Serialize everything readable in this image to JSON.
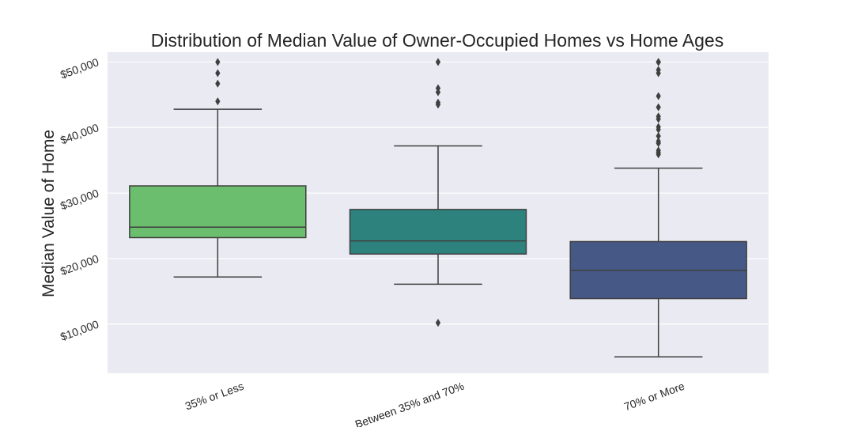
{
  "chart_data": {
    "type": "box",
    "title": "Distribution of Median Value of Owner-Occupied Homes vs Home Ages",
    "xlabel": "",
    "ylabel": "Median Value of Home",
    "ylim": [
      2500,
      51500
    ],
    "y_ticks": [
      10000,
      20000,
      30000,
      40000,
      50000
    ],
    "y_tick_labels": [
      "$10,000",
      "$20,000",
      "$30,000",
      "$40,000",
      "$50,000"
    ],
    "grid": true,
    "categories": [
      "35% or Less",
      "Between 35% and 70%",
      "70% or More"
    ],
    "boxes": [
      {
        "category": "35% or Less",
        "whisker_low": 17200,
        "q1": 23200,
        "median": 24800,
        "q3": 31100,
        "whisker_high": 42800,
        "outliers": [
          50000,
          48300,
          46700,
          44000
        ],
        "color": "#6abe6e"
      },
      {
        "category": "Between 35% and 70%",
        "whisker_low": 16100,
        "q1": 20700,
        "median": 22700,
        "q3": 27500,
        "whisker_high": 37200,
        "outliers": [
          50000,
          46000,
          45400,
          43800,
          43500,
          10200
        ],
        "color": "#2e827e"
      },
      {
        "category": "70% or More",
        "whisker_low": 5000,
        "q1": 13900,
        "median": 18200,
        "q3": 22600,
        "whisker_high": 33800,
        "outliers": [
          50000,
          50000,
          50000,
          48800,
          48300,
          44800,
          43100,
          41700,
          41300,
          40100,
          39700,
          38700,
          37900,
          37600,
          36500,
          36200,
          35900
        ],
        "color": "#455886"
      }
    ]
  }
}
